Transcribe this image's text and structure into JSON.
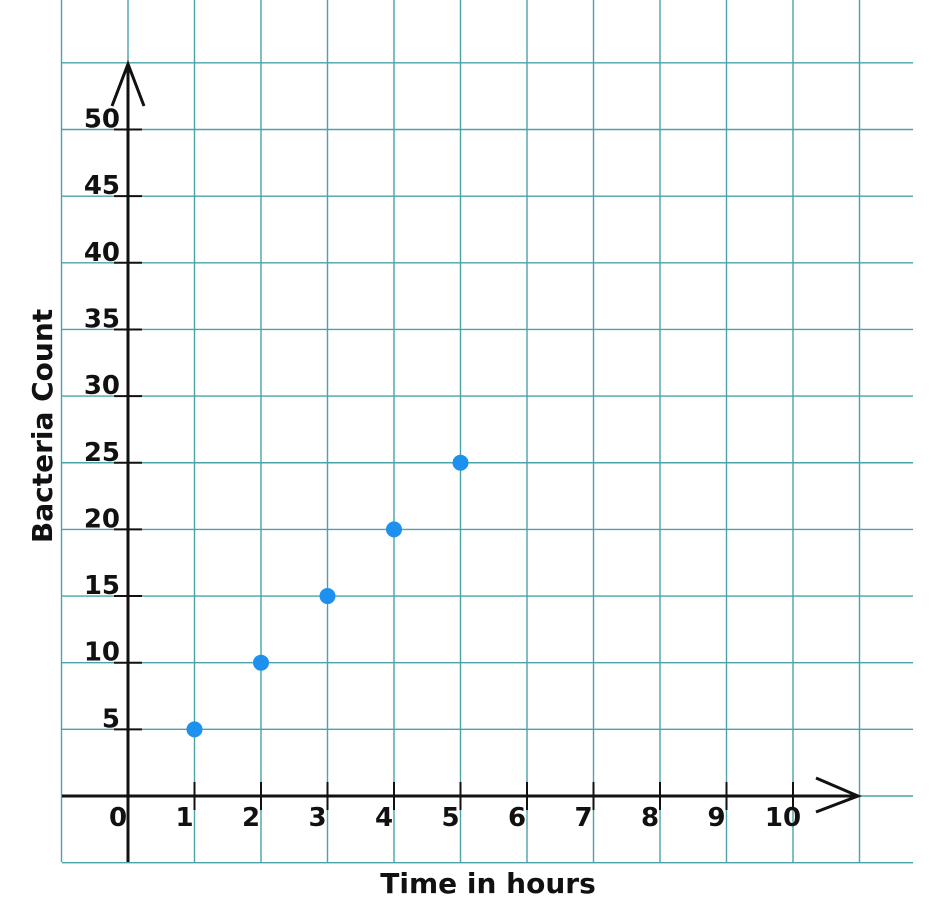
{
  "colors": {
    "grid": "#4aa3a8",
    "axis": "#111111",
    "point": "#1e90f0"
  },
  "chart_data": {
    "type": "scatter",
    "xlabel": "Time in hours",
    "ylabel": "Bacteria Count",
    "xlim": [
      0,
      10
    ],
    "ylim": [
      0,
      50
    ],
    "x_ticks": [
      "0",
      "1",
      "2",
      "3",
      "4",
      "5",
      "6",
      "7",
      "8",
      "9",
      "10"
    ],
    "y_ticks": [
      "5",
      "10",
      "15",
      "20",
      "25",
      "30",
      "35",
      "40",
      "45",
      "50"
    ],
    "grid": true,
    "series": [
      {
        "x": [
          1,
          2,
          3,
          4,
          5
        ],
        "y": [
          5,
          10,
          15,
          20,
          25
        ]
      }
    ]
  }
}
